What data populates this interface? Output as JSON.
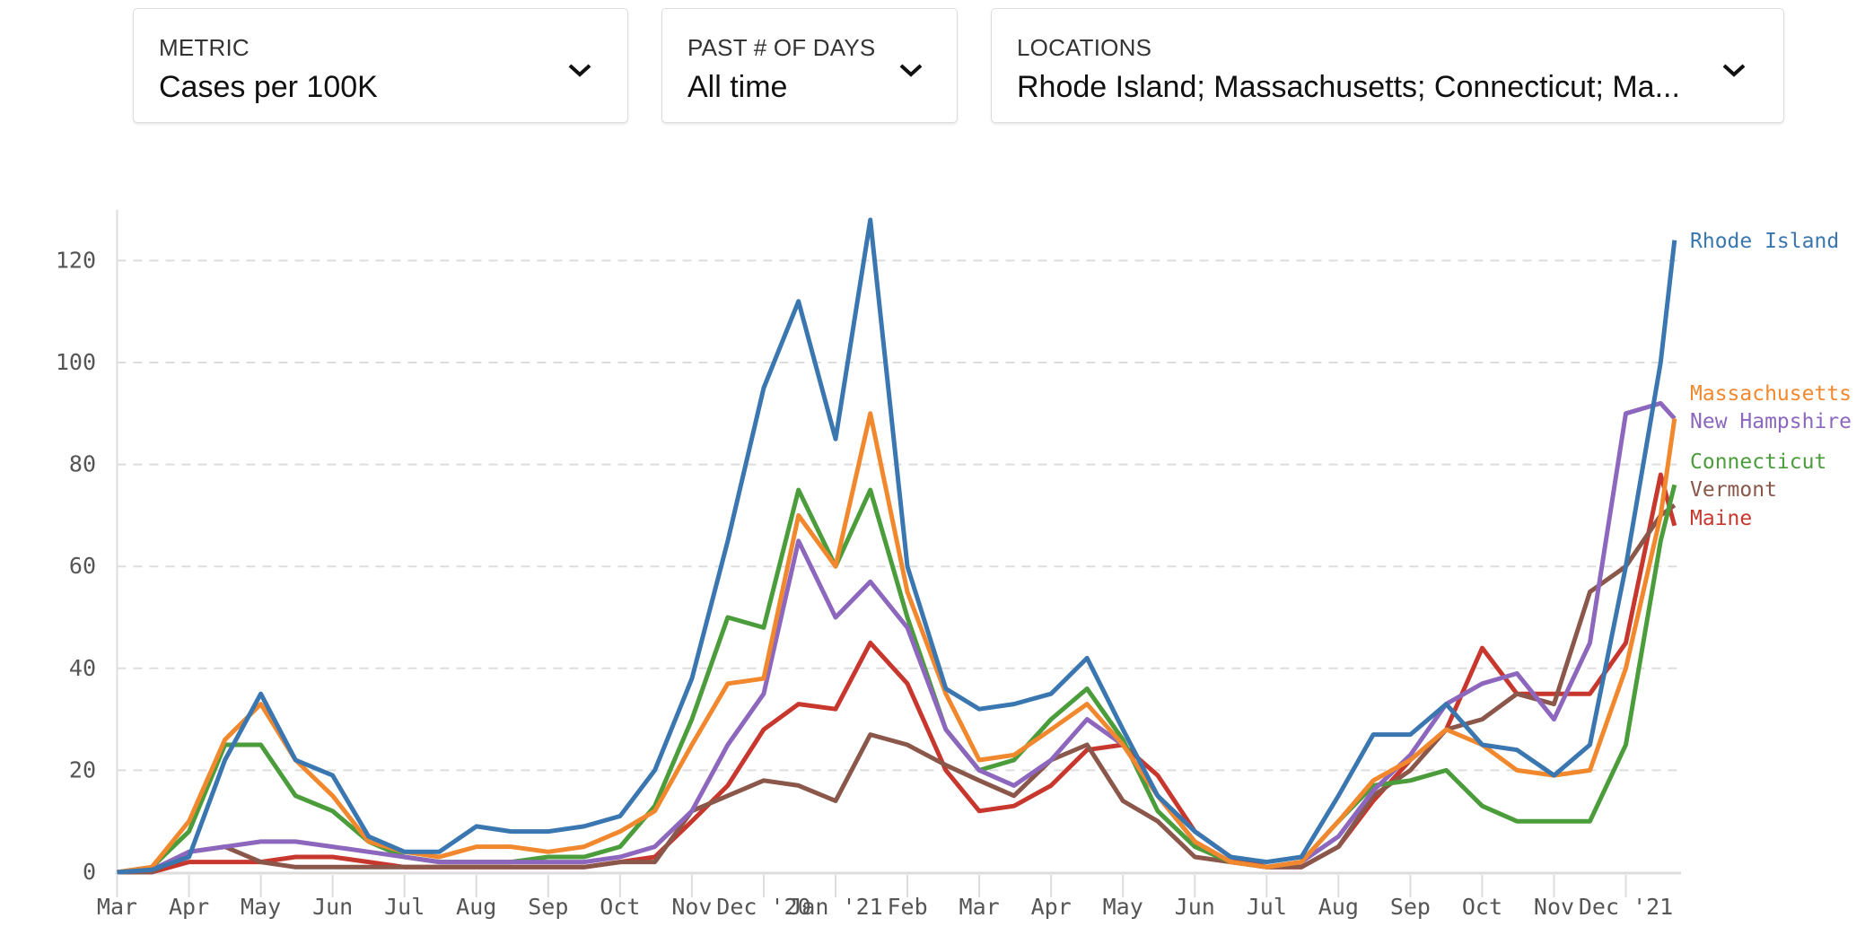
{
  "controls": {
    "metric": {
      "label": "METRIC",
      "value": "Cases per 100K",
      "icon": "chevron-down-icon"
    },
    "days": {
      "label": "PAST # OF DAYS",
      "value": "All time",
      "icon": "chevron-down-icon"
    },
    "locations": {
      "label": "LOCATIONS",
      "value": "Rhode Island; Massachusetts; Connecticut; Ma...",
      "icon": "chevron-down-icon"
    }
  },
  "chart_data": {
    "type": "line",
    "title": "",
    "xlabel": "",
    "ylabel": "",
    "ylim": [
      0,
      130
    ],
    "yticks": [
      "0",
      "20",
      "40",
      "60",
      "80",
      "100",
      "120"
    ],
    "xtick_labels": [
      "Mar",
      "Apr",
      "May",
      "Jun",
      "Jul",
      "Aug",
      "Sep",
      "Oct",
      "Nov",
      "Dec '20",
      "Jan '21",
      "Feb",
      "Mar",
      "Apr",
      "May",
      "Jun",
      "Jul",
      "Aug",
      "Sep",
      "Oct",
      "Nov",
      "Dec '21"
    ],
    "grid": "horizontal dashed",
    "legend": "right (labels at line ends)",
    "x": [
      "2020-03-01",
      "2020-03-16",
      "2020-04-01",
      "2020-04-16",
      "2020-05-01",
      "2020-05-16",
      "2020-06-01",
      "2020-06-16",
      "2020-07-01",
      "2020-07-16",
      "2020-08-01",
      "2020-08-16",
      "2020-09-01",
      "2020-09-16",
      "2020-10-01",
      "2020-10-16",
      "2020-11-01",
      "2020-11-16",
      "2020-12-01",
      "2020-12-16",
      "2021-01-01",
      "2021-01-16",
      "2021-02-01",
      "2021-02-16",
      "2021-03-01",
      "2021-03-16",
      "2021-04-01",
      "2021-04-16",
      "2021-05-01",
      "2021-05-16",
      "2021-06-01",
      "2021-06-16",
      "2021-07-01",
      "2021-07-16",
      "2021-08-01",
      "2021-08-16",
      "2021-09-01",
      "2021-09-16",
      "2021-10-01",
      "2021-10-16",
      "2021-11-01",
      "2021-11-16",
      "2021-12-01",
      "2021-12-16",
      "2021-12-22"
    ],
    "series": [
      {
        "name": "Rhode Island",
        "color": "#3a76af",
        "values": [
          0,
          0.5,
          3,
          22,
          35,
          22,
          19,
          7,
          4,
          4,
          9,
          8,
          8,
          9,
          11,
          20,
          38,
          65,
          95,
          112,
          85,
          128,
          60,
          36,
          32,
          33,
          35,
          42,
          28,
          15,
          8,
          3,
          2,
          3,
          15,
          27,
          27,
          33,
          25,
          24,
          19,
          25,
          60,
          100,
          124
        ]
      },
      {
        "name": "Massachusetts",
        "color": "#f2882e",
        "values": [
          0,
          1,
          10,
          26,
          33,
          22,
          15,
          6,
          4,
          3,
          5,
          5,
          4,
          5,
          8,
          12,
          25,
          37,
          38,
          70,
          60,
          90,
          55,
          35,
          22,
          23,
          28,
          33,
          25,
          15,
          6,
          2,
          1,
          2,
          10,
          18,
          22,
          28,
          25,
          20,
          19,
          20,
          40,
          70,
          89
        ]
      },
      {
        "name": "New Hampshire",
        "color": "#8c67bd",
        "values": [
          0,
          0.5,
          4,
          5,
          6,
          6,
          5,
          4,
          3,
          2,
          2,
          2,
          2,
          2,
          3,
          5,
          12,
          25,
          35,
          65,
          50,
          57,
          48,
          28,
          20,
          17,
          22,
          30,
          25,
          15,
          6,
          2,
          1,
          2,
          7,
          16,
          23,
          33,
          37,
          39,
          30,
          45,
          90,
          92,
          89
        ]
      },
      {
        "name": "Connecticut",
        "color": "#4a9d3a",
        "values": [
          0,
          1,
          8,
          25,
          25,
          15,
          12,
          6,
          3,
          2,
          2,
          2,
          3,
          3,
          5,
          13,
          30,
          50,
          48,
          75,
          60,
          75,
          50,
          28,
          20,
          22,
          30,
          36,
          26,
          12,
          5,
          2,
          1,
          2,
          10,
          17,
          18,
          20,
          13,
          10,
          10,
          10,
          25,
          65,
          76
        ]
      },
      {
        "name": "Vermont",
        "color": "#8a574a",
        "values": [
          0,
          0,
          4,
          5,
          2,
          1,
          1,
          1,
          1,
          1,
          1,
          1,
          1,
          1,
          2,
          2,
          12,
          15,
          18,
          17,
          14,
          27,
          25,
          21,
          18,
          15,
          22,
          25,
          14,
          10,
          3,
          2,
          1,
          1,
          5,
          15,
          20,
          28,
          30,
          35,
          33,
          55,
          60,
          70,
          72
        ]
      },
      {
        "name": "Maine",
        "color": "#c8372d",
        "values": [
          0,
          0,
          2,
          2,
          2,
          3,
          3,
          2,
          1,
          1,
          1,
          1,
          1,
          1,
          2,
          3,
          10,
          17,
          28,
          33,
          32,
          45,
          37,
          20,
          12,
          13,
          17,
          24,
          25,
          19,
          8,
          3,
          1,
          1,
          5,
          14,
          22,
          28,
          44,
          35,
          35,
          35,
          45,
          78,
          68
        ]
      }
    ]
  }
}
